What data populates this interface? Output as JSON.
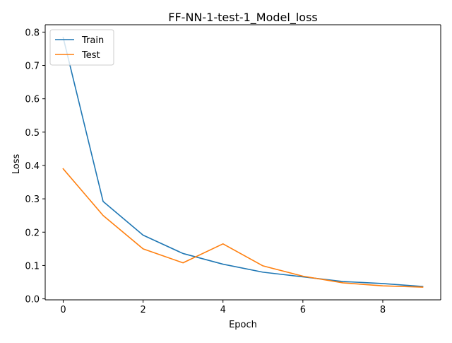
{
  "chart_data": {
    "type": "line",
    "title": "FF-NN-1-test-1_Model_loss",
    "xlabel": "Epoch",
    "ylabel": "Loss",
    "x": [
      0,
      1,
      2,
      3,
      4,
      5,
      6,
      7,
      8,
      9
    ],
    "xlim": [
      -0.45,
      9.45
    ],
    "ylim": [
      -0.003,
      0.822
    ],
    "xticks": [
      0,
      2,
      4,
      6,
      8
    ],
    "yticks": [
      0.0,
      0.1,
      0.2,
      0.3,
      0.4,
      0.5,
      0.6,
      0.7,
      0.8
    ],
    "xtick_labels": [
      "0",
      "2",
      "4",
      "6",
      "8"
    ],
    "ytick_labels": [
      "0.0",
      "0.1",
      "0.2",
      "0.3",
      "0.4",
      "0.5",
      "0.6",
      "0.7",
      "0.8"
    ],
    "grid": false,
    "legend_position": "top-left",
    "series": [
      {
        "name": "Train",
        "color": "#1f77b4",
        "values": [
          0.784,
          0.292,
          0.191,
          0.136,
          0.104,
          0.08,
          0.066,
          0.052,
          0.046,
          0.037
        ]
      },
      {
        "name": "Test",
        "color": "#ff7f0e",
        "values": [
          0.39,
          0.25,
          0.15,
          0.108,
          0.165,
          0.099,
          0.068,
          0.048,
          0.039,
          0.035
        ]
      }
    ]
  }
}
